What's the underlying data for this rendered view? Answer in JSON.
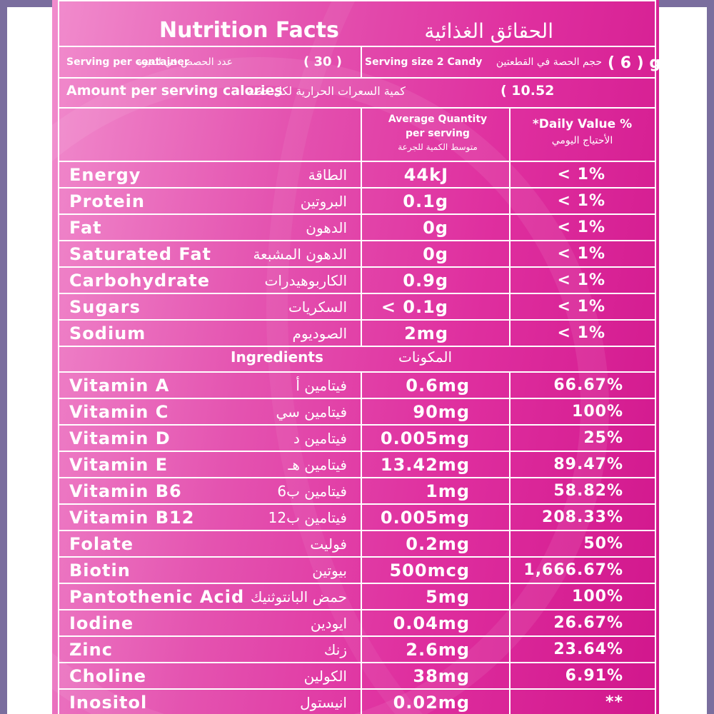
{
  "header": {
    "title_en": "Nutrition Facts",
    "title_ar": "الحقائق الغذائية"
  },
  "serving": {
    "per_container_en": "Serving per container",
    "per_container_ar": "عدد الحصص في العبوة",
    "per_container_value": "( 30 )",
    "size_en": "Serving size 2 Candy",
    "size_ar": "حجم الحصة في القطعتين",
    "size_value": "( 6 ) g"
  },
  "calories": {
    "label_en": "Amount per serving calories",
    "label_ar": "كمية السعرات الحرارية لكل حصة",
    "value": "( 10.52"
  },
  "columns": {
    "avg_en_1": "Average Quantity",
    "avg_en_2": "per serving",
    "avg_ar": "متوسط الكمية للجرعة",
    "dv_en": "*Daily Value %",
    "dv_ar": "الأحتياج اليومي"
  },
  "nutrients": [
    {
      "en": "Energy",
      "ar": "الطاقة",
      "amount": "44kJ",
      "dv": "< 1%"
    },
    {
      "en": "Protein",
      "ar": "البروتين",
      "amount": "0.1g",
      "dv": "< 1%"
    },
    {
      "en": "Fat",
      "ar": "الدهون",
      "amount": "0g",
      "dv": "< 1%"
    },
    {
      "en": "Saturated Fat",
      "ar": "الدهون المشبعة",
      "amount": "0g",
      "dv": "< 1%"
    },
    {
      "en": "Carbohydrate",
      "ar": "الكاربوهيدرات",
      "amount": "0.9g",
      "dv": "< 1%"
    },
    {
      "en": "Sugars",
      "ar": "السكريات",
      "amount": "< 0.1g",
      "dv": "< 1%"
    },
    {
      "en": "Sodium",
      "ar": "الصوديوم",
      "amount": "2mg",
      "dv": "< 1%"
    }
  ],
  "ingredients_header": {
    "en": "Ingredients",
    "ar": "المكونات"
  },
  "ingredients": [
    {
      "en": "Vitamin A",
      "ar": "فيتامين أ",
      "amount": "0.6mg",
      "dv": "66.67%"
    },
    {
      "en": "Vitamin C",
      "ar": "فيتامين سي",
      "amount": "90mg",
      "dv": "100%"
    },
    {
      "en": "Vitamin D",
      "ar": "فيتامين د",
      "amount": "0.005mg",
      "dv": "25%"
    },
    {
      "en": "Vitamin E",
      "ar": "فيتامين هـ",
      "amount": "13.42mg",
      "dv": "89.47%"
    },
    {
      "en": "Vitamin B6",
      "ar": "فيتامين ب6",
      "amount": "1mg",
      "dv": "58.82%"
    },
    {
      "en": "Vitamin B12",
      "ar": "فيتامين ب12",
      "amount": "0.005mg",
      "dv": "208.33%"
    },
    {
      "en": "Folate",
      "ar": "فوليت",
      "amount": "0.2mg",
      "dv": "50%"
    },
    {
      "en": "Biotin",
      "ar": "بيوتين",
      "amount": "500mcg",
      "dv": "1,666.67%"
    },
    {
      "en": "Pantothenic Acid",
      "ar": "حمض البانتوثنيك",
      "amount": "5mg",
      "dv": "100%"
    },
    {
      "en": "Iodine",
      "ar": "ايودين",
      "amount": "0.04mg",
      "dv": "26.67%"
    },
    {
      "en": "Zinc",
      "ar": "زنك",
      "amount": "2.6mg",
      "dv": "23.64%"
    },
    {
      "en": "Choline",
      "ar": "الكولين",
      "amount": "38mg",
      "dv": "6.91%"
    },
    {
      "en": "Inositol",
      "ar": "انيستول",
      "amount": "0.02mg",
      "dv": "**"
    }
  ]
}
